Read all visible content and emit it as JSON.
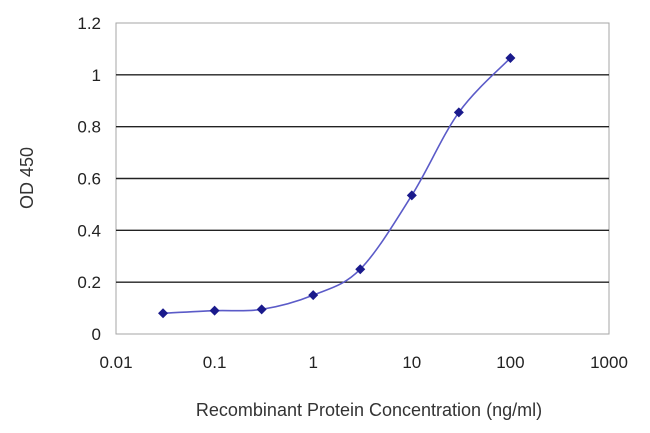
{
  "chart_data": {
    "type": "scatter",
    "title": "",
    "xlabel": "Recombinant Protein Concentration (ng/ml)",
    "ylabel": "OD 450",
    "xscale": "log",
    "xlim": [
      0.01,
      1000
    ],
    "ylim": [
      0,
      1.2
    ],
    "xticks": [
      "0.01",
      "0.1",
      "1",
      "10",
      "100",
      "1000"
    ],
    "yticks": [
      "0",
      "0.2",
      "0.4",
      "0.6",
      "0.8",
      "1",
      "1.2"
    ],
    "grid": "horizontal",
    "legend": "none",
    "fitted_curve": true,
    "series": [
      {
        "x": [
          0.03,
          0.1,
          0.3,
          1,
          3,
          10,
          30,
          100
        ],
        "y": [
          0.08,
          0.09,
          0.095,
          0.15,
          0.25,
          0.535,
          0.855,
          1.065
        ]
      }
    ],
    "colors": {
      "marker": "#1a1a8c",
      "curve": "#5b5bc8",
      "grid": "#222222",
      "plot_border": "#a6a6a6",
      "plot_bg": "#ffffff"
    }
  }
}
